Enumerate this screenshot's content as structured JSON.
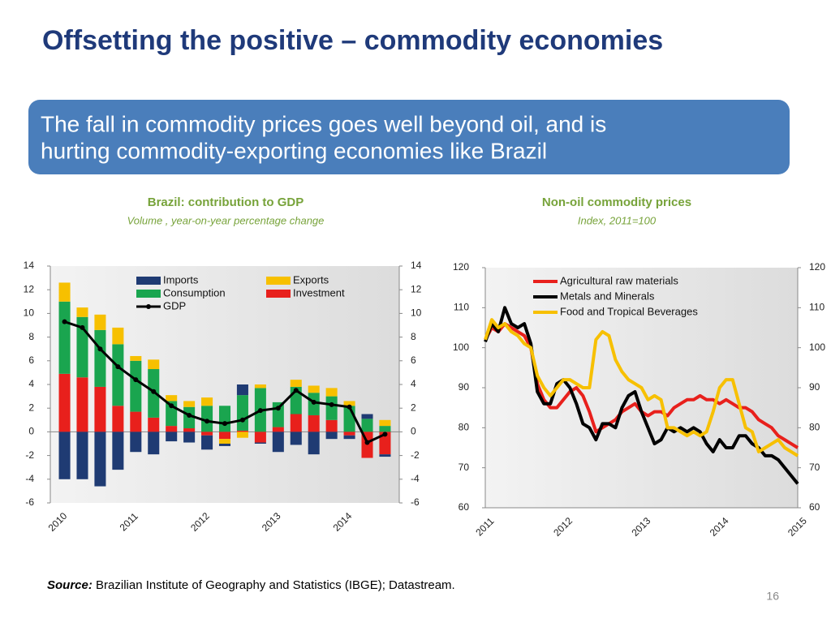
{
  "title": "Offsetting the positive – commodity economies",
  "banner": [
    "The fall in commodity prices goes well beyond oil, and is",
    "hurting commodity-exporting economies like Brazil"
  ],
  "chart_data": [
    {
      "type": "bar",
      "title": "Brazil: contribution to GDP",
      "subtitle": "Volume , year-on-year percentage change",
      "categories": [
        "2010",
        null,
        null,
        null,
        "2011",
        null,
        null,
        null,
        "2012",
        null,
        null,
        null,
        "2013",
        null,
        null,
        null,
        "2014",
        null,
        null
      ],
      "series": [
        {
          "name": "Imports",
          "color": "#1f3b73",
          "values": [
            -4.0,
            -4.0,
            -4.6,
            -3.2,
            -1.7,
            -1.9,
            -0.8,
            -0.9,
            -1.2,
            -0.2,
            0.9,
            -0.1,
            -1.7,
            -1.1,
            -1.9,
            -0.6,
            -0.3,
            0.4,
            -0.2
          ]
        },
        {
          "name": "Exports",
          "color": "#f7c000",
          "values": [
            1.6,
            0.8,
            1.3,
            1.4,
            0.4,
            0.8,
            0.5,
            0.5,
            0.7,
            -0.4,
            -0.5,
            0.3,
            0,
            0.6,
            0.6,
            0.7,
            0.4,
            0,
            0.5
          ]
        },
        {
          "name": "Consumption",
          "color": "#1aa54f",
          "values": [
            6.1,
            5.1,
            4.8,
            5.2,
            4.3,
            4.1,
            2.1,
            1.8,
            2.2,
            2.2,
            3.0,
            3.7,
            2.1,
            2.3,
            1.9,
            2.0,
            2.2,
            1.1,
            0.5
          ]
        },
        {
          "name": "Investment",
          "color": "#e8201c",
          "values": [
            4.9,
            4.6,
            3.8,
            2.2,
            1.7,
            1.2,
            0.5,
            0.3,
            -0.3,
            -0.6,
            0.1,
            -0.9,
            0.4,
            1.5,
            1.4,
            1.0,
            -0.3,
            -2.2,
            -1.9
          ]
        },
        {
          "name": "GDP",
          "color": "#000000",
          "type": "line",
          "values": [
            9.3,
            8.8,
            7.0,
            5.5,
            4.4,
            3.4,
            2.2,
            1.4,
            0.9,
            0.7,
            1.0,
            1.8,
            2.0,
            3.5,
            2.5,
            2.3,
            2.1,
            -0.9,
            -0.2
          ]
        }
      ],
      "ylim": [
        -6,
        14
      ],
      "yticks": [
        -6,
        -4,
        -2,
        0,
        2,
        4,
        6,
        8,
        10,
        12,
        14
      ],
      "y2lim": [
        -6,
        14
      ],
      "y2ticks": [
        -6,
        -4,
        -2,
        0,
        2,
        4,
        6,
        8,
        10,
        12,
        14
      ],
      "legend": "top"
    },
    {
      "type": "line",
      "title": "Non-oil commodity prices",
      "subtitle": "Index, 2011=100",
      "categories": [
        "2011",
        null,
        null,
        null,
        null,
        null,
        null,
        null,
        null,
        null,
        null,
        null,
        "2012",
        null,
        null,
        null,
        null,
        null,
        null,
        null,
        null,
        null,
        null,
        null,
        "2013",
        null,
        null,
        null,
        null,
        null,
        null,
        null,
        null,
        null,
        null,
        null,
        "2014",
        null,
        null,
        null,
        null,
        null,
        null,
        null,
        null,
        null,
        null,
        null,
        "2015"
      ],
      "series": [
        {
          "name": "Agricultural raw materials",
          "color": "#e8201c",
          "values": [
            102,
            105,
            104,
            106,
            105,
            104,
            103,
            100,
            91,
            87,
            85,
            85,
            87,
            89,
            90,
            88,
            84,
            79,
            80,
            81,
            82,
            84,
            85,
            86,
            84,
            83,
            84,
            84,
            83,
            85,
            86,
            87,
            87,
            88,
            87,
            87,
            86,
            87,
            86,
            85,
            85,
            84,
            82,
            81,
            80,
            78,
            77,
            76,
            75
          ]
        },
        {
          "name": "Metals and Minerals",
          "color": "#000000",
          "values": [
            101.5,
            106,
            104,
            110,
            106,
            105,
            106,
            101,
            89,
            86,
            86,
            91,
            92,
            90,
            86,
            81,
            80,
            77,
            81,
            81,
            80,
            85,
            88,
            89,
            84,
            80,
            76,
            77,
            80,
            79,
            80,
            79,
            80,
            79,
            76,
            74,
            77,
            75,
            75,
            78,
            78,
            76,
            75,
            73,
            73,
            72,
            70,
            68,
            66
          ]
        },
        {
          "name": "Food and Tropical Beverages",
          "color": "#f7c000",
          "values": [
            102,
            107,
            105,
            106,
            104,
            103,
            101,
            100,
            93,
            90,
            88,
            90,
            92,
            92,
            91,
            90,
            90,
            102,
            104,
            103,
            97,
            94,
            92,
            91,
            90,
            87,
            88,
            87,
            80,
            80,
            79,
            78,
            79,
            78,
            79,
            84,
            90,
            92,
            92,
            86,
            80,
            79,
            74,
            75,
            76,
            77,
            75,
            74,
            73
          ]
        }
      ],
      "ylim": [
        60,
        120
      ],
      "yticks": [
        60,
        70,
        80,
        90,
        100,
        110,
        120
      ],
      "y2lim": [
        60,
        120
      ],
      "y2ticks": [
        60,
        70,
        80,
        90,
        100,
        110,
        120
      ],
      "legend": "top"
    }
  ],
  "source": {
    "label": "Source:",
    "text": " Brazilian Institute of Geography and Statistics (IBGE); Datastream."
  },
  "page_number": "16"
}
